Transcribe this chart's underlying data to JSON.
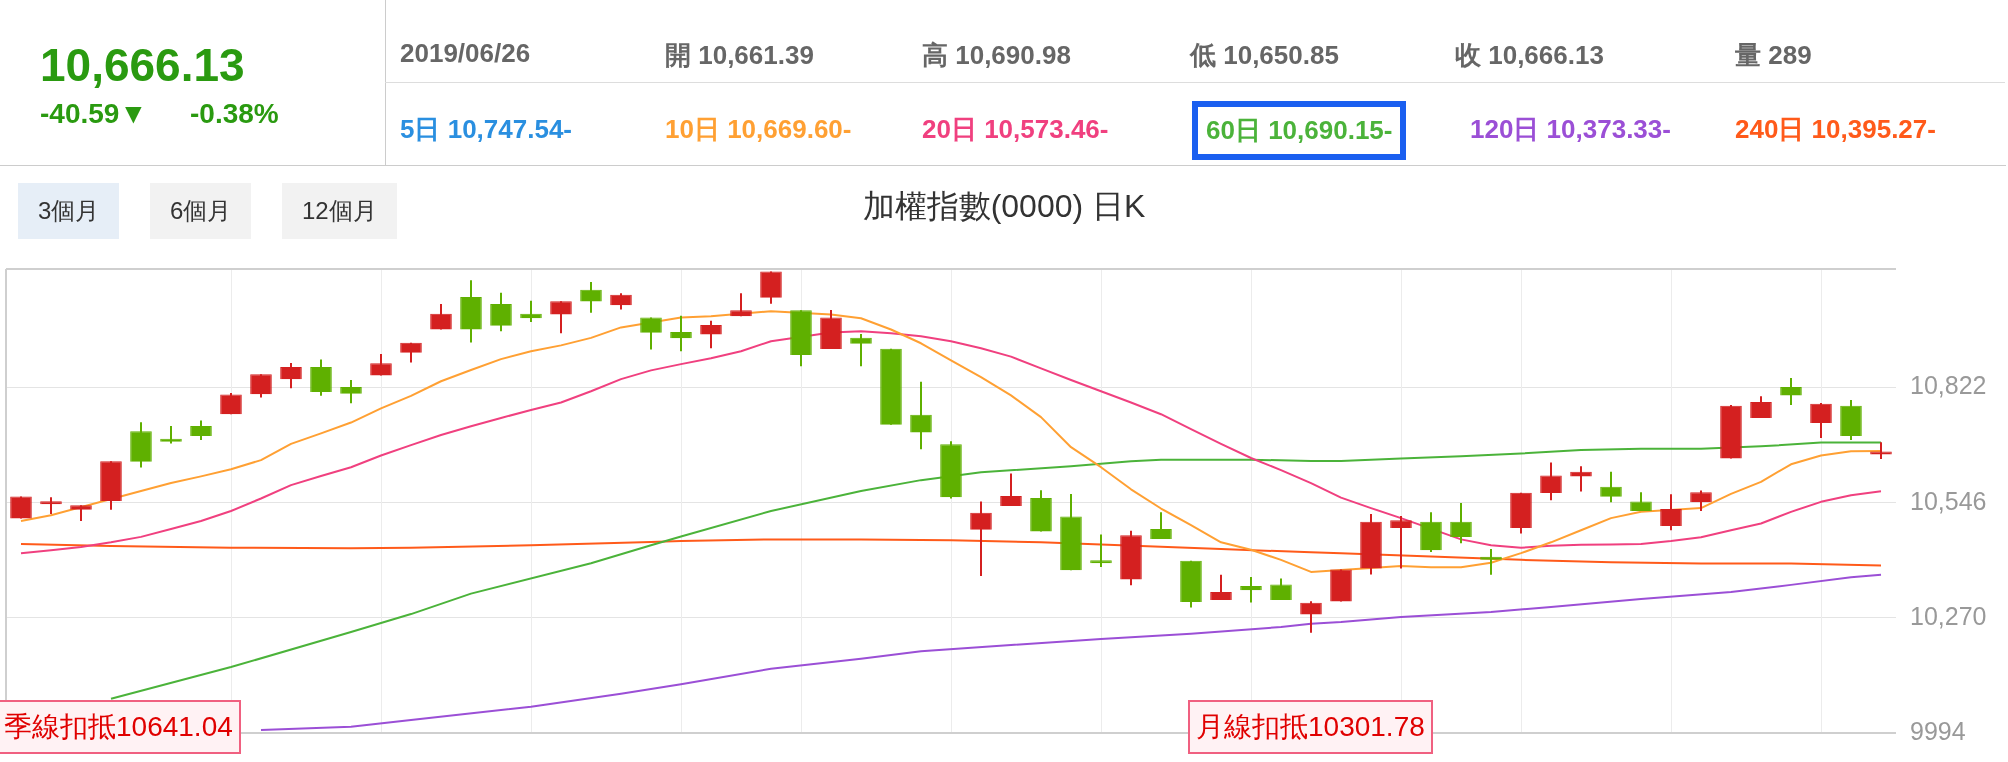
{
  "chart_data": {
    "type": "candlestick",
    "title": "加權指數(0000) 日K",
    "categories": [
      null,
      null,
      null,
      null,
      null,
      null,
      null,
      null,
      null,
      null,
      null,
      null,
      null,
      null,
      null,
      null,
      null,
      null,
      null,
      null,
      null,
      null,
      null,
      null,
      null,
      null,
      null,
      null,
      null,
      null,
      null,
      null,
      null,
      null,
      null,
      null,
      null,
      null,
      null,
      null,
      null,
      null,
      null,
      null,
      null,
      null,
      null,
      null,
      null,
      null,
      null,
      null,
      null,
      null,
      null,
      null,
      null,
      null,
      null,
      null,
      null,
      null,
      null
    ],
    "ohlc": [
      [
        10508,
        10561,
        10508,
        10561
      ],
      [
        10542,
        10559,
        10519,
        10543
      ],
      [
        10529,
        10540,
        10502,
        10540
      ],
      [
        10550,
        10645,
        10529,
        10645
      ],
      [
        10717,
        10739,
        10630,
        10644
      ],
      [
        10699,
        10730,
        10688,
        10692
      ],
      [
        10730,
        10743,
        10696,
        10706
      ],
      [
        10758,
        10809,
        10758,
        10805
      ],
      [
        10806,
        10854,
        10798,
        10854
      ],
      [
        10842,
        10881,
        10820,
        10871
      ],
      [
        10871,
        10889,
        10802,
        10811
      ],
      [
        10823,
        10840,
        10784,
        10807
      ],
      [
        10851,
        10902,
        10851,
        10880
      ],
      [
        10905,
        10929,
        10882,
        10929
      ],
      [
        10961,
        11022,
        10961,
        10999
      ],
      [
        11039,
        11079,
        10930,
        10961
      ],
      [
        11022,
        11049,
        10957,
        10970
      ],
      [
        10999,
        11030,
        10979,
        10988
      ],
      [
        10997,
        11029,
        10952,
        11029
      ],
      [
        11056,
        11075,
        11001,
        11028
      ],
      [
        11019,
        11048,
        11009,
        11044
      ],
      [
        10990,
        10990,
        10913,
        10953
      ],
      [
        10955,
        10994,
        10909,
        10940
      ],
      [
        10949,
        10982,
        10916,
        10972
      ],
      [
        10993,
        11048,
        10993,
        11007
      ],
      [
        11037,
        11100,
        11023,
        11100
      ],
      [
        11007,
        11007,
        10873,
        10900
      ],
      [
        10914,
        11008,
        10914,
        10990
      ],
      [
        10941,
        10950,
        10873,
        10927
      ],
      [
        10915,
        10915,
        10733,
        10733
      ],
      [
        10757,
        10836,
        10674,
        10714
      ],
      [
        10686,
        10693,
        10556,
        10559
      ],
      [
        10481,
        10549,
        10370,
        10522
      ],
      [
        10538,
        10616,
        10538,
        10562
      ],
      [
        10557,
        10576,
        10477,
        10477
      ],
      [
        10513,
        10567,
        10384,
        10384
      ],
      [
        10408,
        10470,
        10392,
        10401
      ],
      [
        10362,
        10479,
        10348,
        10468
      ],
      [
        10483,
        10523,
        10459,
        10459
      ],
      [
        10407,
        10407,
        10295,
        10308
      ],
      [
        10313,
        10373,
        10313,
        10332
      ],
      [
        10346,
        10368,
        10307,
        10336
      ],
      [
        10350,
        10364,
        10313,
        10313
      ],
      [
        10278,
        10310,
        10234,
        10306
      ],
      [
        10309,
        10386,
        10309,
        10386
      ],
      [
        10388,
        10519,
        10374,
        10500
      ],
      [
        10485,
        10514,
        10388,
        10504
      ],
      [
        10500,
        10523,
        10428,
        10432
      ],
      [
        10500,
        10545,
        10449,
        10464
      ],
      [
        10413,
        10435,
        10373,
        10409
      ],
      [
        10485,
        10570,
        10472,
        10570
      ],
      [
        10569,
        10642,
        10552,
        10611
      ],
      [
        10609,
        10633,
        10573,
        10620
      ],
      [
        10584,
        10620,
        10547,
        10560
      ],
      [
        10549,
        10571,
        10526,
        10526
      ],
      [
        10490,
        10566,
        10480,
        10531
      ],
      [
        10547,
        10575,
        10526,
        10571
      ],
      [
        10652,
        10780,
        10652,
        10778
      ],
      [
        10749,
        10801,
        10749,
        10787
      ],
      [
        10823,
        10845,
        10780,
        10803
      ],
      [
        10737,
        10785,
        10701,
        10783
      ],
      [
        10778,
        10792,
        10696,
        10706
      ],
      [
        10661.39,
        10690.98,
        10650.85,
        10666.13
      ]
    ],
    "series": [
      {
        "type": "line",
        "color": "#ffa033",
        "values": [
          10502,
          10516,
          null,
          null,
          10574,
          10593,
          10609,
          10626,
          10648,
          10687,
          10712,
          10738,
          10772,
          10802,
          10837,
          10864,
          10890,
          10909,
          10923,
          10941,
          10966,
          null,
          10990,
          10993,
          null,
          11005,
          null,
          10997,
          10988,
          10961,
          10928,
          10887,
          10847,
          10803,
          10751,
          10679,
          10631,
          10578,
          10532,
          10492,
          10451,
          10433,
          10409,
          10380,
          null,
          null,
          10394,
          10391,
          10391,
          10402,
          10425,
          10451,
          10480,
          10509,
          10524,
          null,
          10533,
          10567,
          10596,
          10638,
          10659,
          10669,
          10669.6
        ]
      },
      {
        "type": "line",
        "color": "#f0407f",
        "values": [
          10425,
          10432,
          10440,
          10451,
          10464,
          10483,
          10502,
          10526,
          10556,
          10588,
          10610,
          10631,
          10659,
          10684,
          10708,
          10729,
          10749,
          10768,
          10786,
          10813,
          10842,
          10863,
          10878,
          10892,
          10909,
          10933,
          null,
          10954,
          10957,
          10952,
          10945,
          10933,
          10916,
          10896,
          10868,
          10840,
          10813,
          10786,
          10758,
          10722,
          10687,
          10653,
          10624,
          10593,
          10558,
          10533,
          10509,
          null,
          10458,
          10444,
          10438,
          10443,
          10445,
          10446,
          10447,
          10454,
          10463,
          10480,
          10496,
          10524,
          10548,
          10564,
          10573.46
        ]
      },
      {
        "type": "line",
        "color": "#4bb33a",
        "values": [
          null,
          null,
          null,
          10076,
          null,
          null,
          null,
          10152,
          null,
          null,
          null,
          10236,
          null,
          10279,
          null,
          10328,
          null,
          null,
          null,
          10401,
          null,
          10444,
          10465,
          null,
          null,
          10526,
          null,
          null,
          10574,
          null,
          10600,
          null,
          10619,
          null,
          null,
          10633,
          null,
          10645,
          10649,
          null,
          null,
          10649,
          null,
          10646,
          10646,
          null,
          10652,
          null,
          10657,
          null,
          10664,
          null,
          10672,
          null,
          10675,
          null,
          10675,
          null,
          10681,
          null,
          10690,
          null,
          10690.15
        ]
      },
      {
        "type": "line",
        "color": "#9b4fd6",
        "values": [
          null,
          null,
          null,
          null,
          null,
          null,
          null,
          null,
          10001,
          null,
          null,
          10009,
          null,
          10025,
          null,
          null,
          null,
          10057,
          null,
          null,
          10088,
          null,
          10111,
          null,
          null,
          10148,
          null,
          null,
          10172,
          null,
          10190,
          null,
          null,
          10205,
          null,
          null,
          10219,
          null,
          null,
          10232,
          null,
          null,
          10248,
          10256,
          10260,
          null,
          10272,
          null,
          null,
          10284,
          null,
          10296,
          null,
          null,
          10315,
          null,
          null,
          10332,
          null,
          10349,
          null,
          10367,
          10373.33
        ]
      },
      {
        "type": "line",
        "color": "#ff5a1a",
        "values": [
          10447,
          null,
          null,
          10442,
          null,
          null,
          null,
          10438,
          null,
          null,
          null,
          10437,
          null,
          10438,
          null,
          null,
          null,
          10444,
          null,
          null,
          null,
          10452,
          10454,
          null,
          null,
          10458,
          null,
          null,
          10458,
          null,
          null,
          10456,
          null,
          null,
          10451,
          null,
          null,
          null,
          null,
          null,
          10435,
          null,
          null,
          10427,
          10425,
          null,
          null,
          10417,
          null,
          null,
          10409,
          null,
          null,
          10403,
          null,
          null,
          10400,
          null,
          null,
          10400,
          null,
          null,
          10395.27
        ]
      }
    ],
    "ylim": [
      9994,
      11106
    ],
    "yticks": [
      9994,
      {
        "value": 10270,
        "label": "10,270"
      },
      {
        "value": 10546,
        "label": "10,546"
      },
      {
        "value": 10822,
        "label": "10,822"
      }
    ],
    "grid": true,
    "legend": false,
    "tick_labels": "y",
    "annotations": [
      "10,666.13",
      "-40.59▼",
      "-0.38%",
      "2019/06/26",
      "開 10,661.39",
      "高 10,690.98",
      "低 10,650.85",
      "收 10,666.13",
      "量 289",
      "5日 10,747.54-",
      "10日 10,669.60-",
      "20日 10,573.46-",
      "60日 10,690.15-",
      "120日 10,373.33-",
      "240日 10,395.27-",
      "3個月",
      "6個月",
      "12個月",
      "季線扣抵10641.04",
      "月線扣抵10301.78"
    ]
  }
}
